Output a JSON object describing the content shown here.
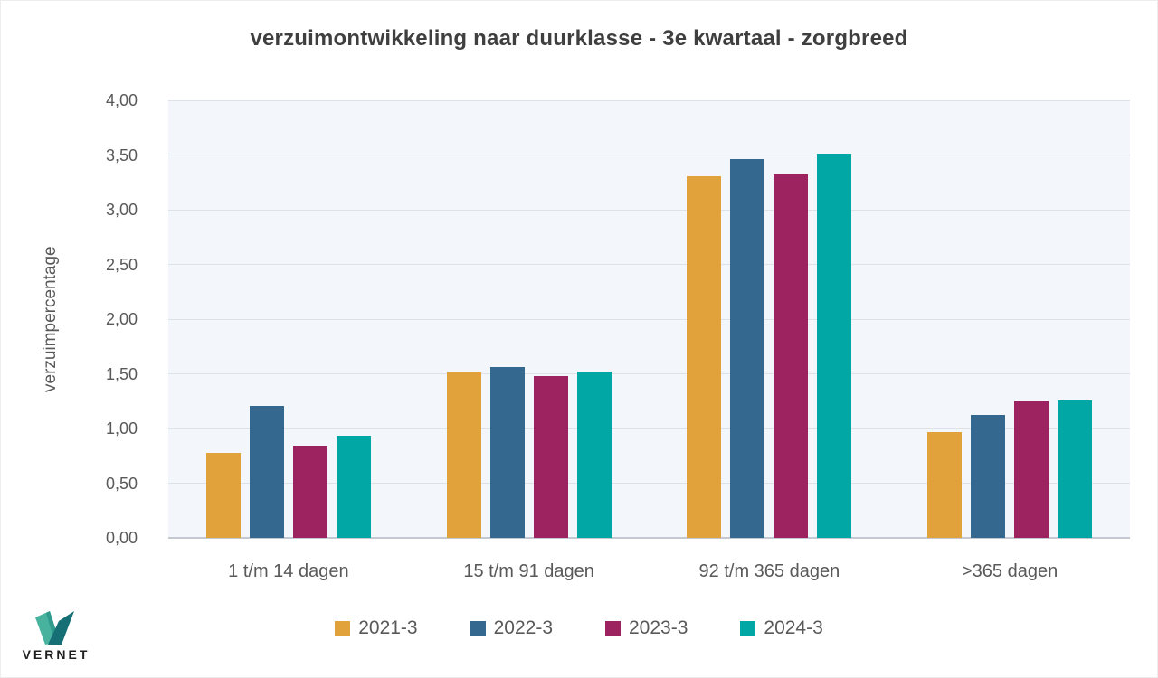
{
  "logo": {
    "text": "VERNET"
  },
  "style": {
    "plot_bg": "#f3f6fb",
    "grid_color": "#dde1e8",
    "axis_line_color": "#c4c9d1",
    "title_color": "#3f3f3f",
    "axis_text_color": "#595959"
  },
  "chart_data": {
    "type": "bar",
    "title": "verzuimontwikkeling naar duurklasse - 3e kwartaal - zorgbreed",
    "xlabel": "",
    "ylabel": "verzuimpercentage",
    "ylim": [
      0,
      4
    ],
    "ytick_step": 0.5,
    "ytick_labels": [
      "0,00",
      "0,50",
      "1,00",
      "1,50",
      "2,00",
      "2,50",
      "3,00",
      "3,50",
      "4,00"
    ],
    "grid": true,
    "legend_position": "bottom",
    "categories": [
      "1 t/m 14 dagen",
      "15 t/m 91 dagen",
      "92 t/m 365 dagen",
      ">365 dagen"
    ],
    "series": [
      {
        "name": "2021-3",
        "color": "#e2a23b",
        "values": [
          0.78,
          1.51,
          3.31,
          0.97
        ]
      },
      {
        "name": "2022-3",
        "color": "#35688f",
        "values": [
          1.21,
          1.56,
          3.46,
          1.12
        ]
      },
      {
        "name": "2023-3",
        "color": "#9c2360",
        "values": [
          0.84,
          1.48,
          3.32,
          1.25
        ]
      },
      {
        "name": "2024-3",
        "color": "#00a7a5",
        "values": [
          0.93,
          1.52,
          3.51,
          1.26
        ]
      }
    ]
  }
}
